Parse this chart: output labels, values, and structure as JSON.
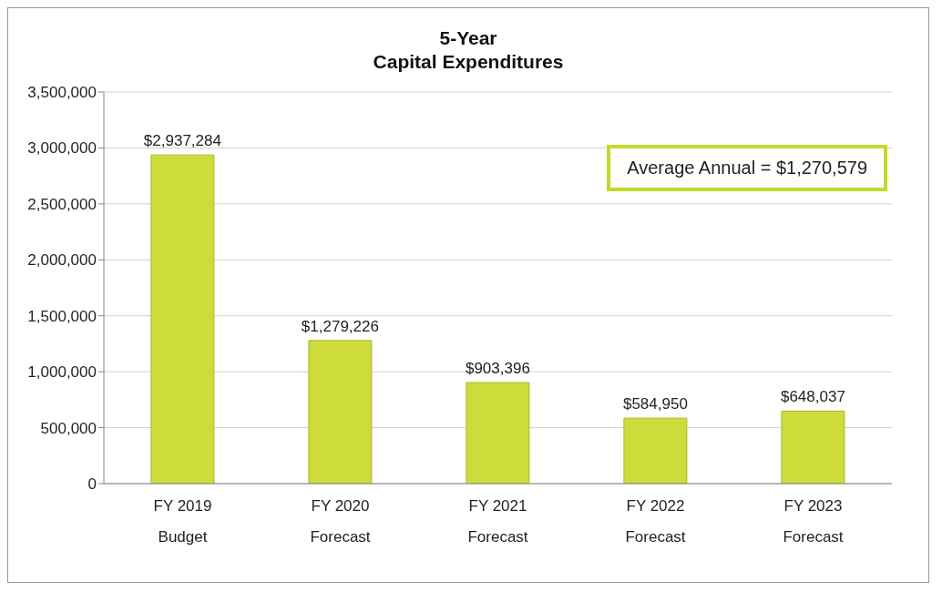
{
  "chart_data": {
    "type": "bar",
    "title": "5-Year\nCapital Expenditures",
    "categories": [
      "FY 2019\nBudget",
      "FY 2020\nForecast",
      "FY 2021\nForecast",
      "FY 2022\nForecast",
      "FY 2023\nForecast"
    ],
    "values": [
      2937284,
      1279226,
      903396,
      584950,
      648037
    ],
    "value_labels": [
      "$2,937,284",
      "$1,279,226",
      "$903,396",
      "$584,950",
      "$648,037"
    ],
    "color": "#cddc3a",
    "ylim": [
      0,
      3500000
    ],
    "yticks": [
      0,
      {
        "value": 500000,
        "label": "500,000"
      },
      {
        "value": 1000000,
        "label": "1,000,000"
      },
      {
        "value": 1500000,
        "label": "1,500,000"
      },
      {
        "value": 2000000,
        "label": "2,000,000"
      },
      {
        "value": 2500000,
        "label": "2,500,000"
      },
      {
        "value": 3000000,
        "label": "3,000,000"
      },
      {
        "value": 3500000,
        "label": "3,500,000"
      }
    ],
    "grid": "y",
    "annotations": [
      "Average Annual = $1,270,579"
    ]
  }
}
